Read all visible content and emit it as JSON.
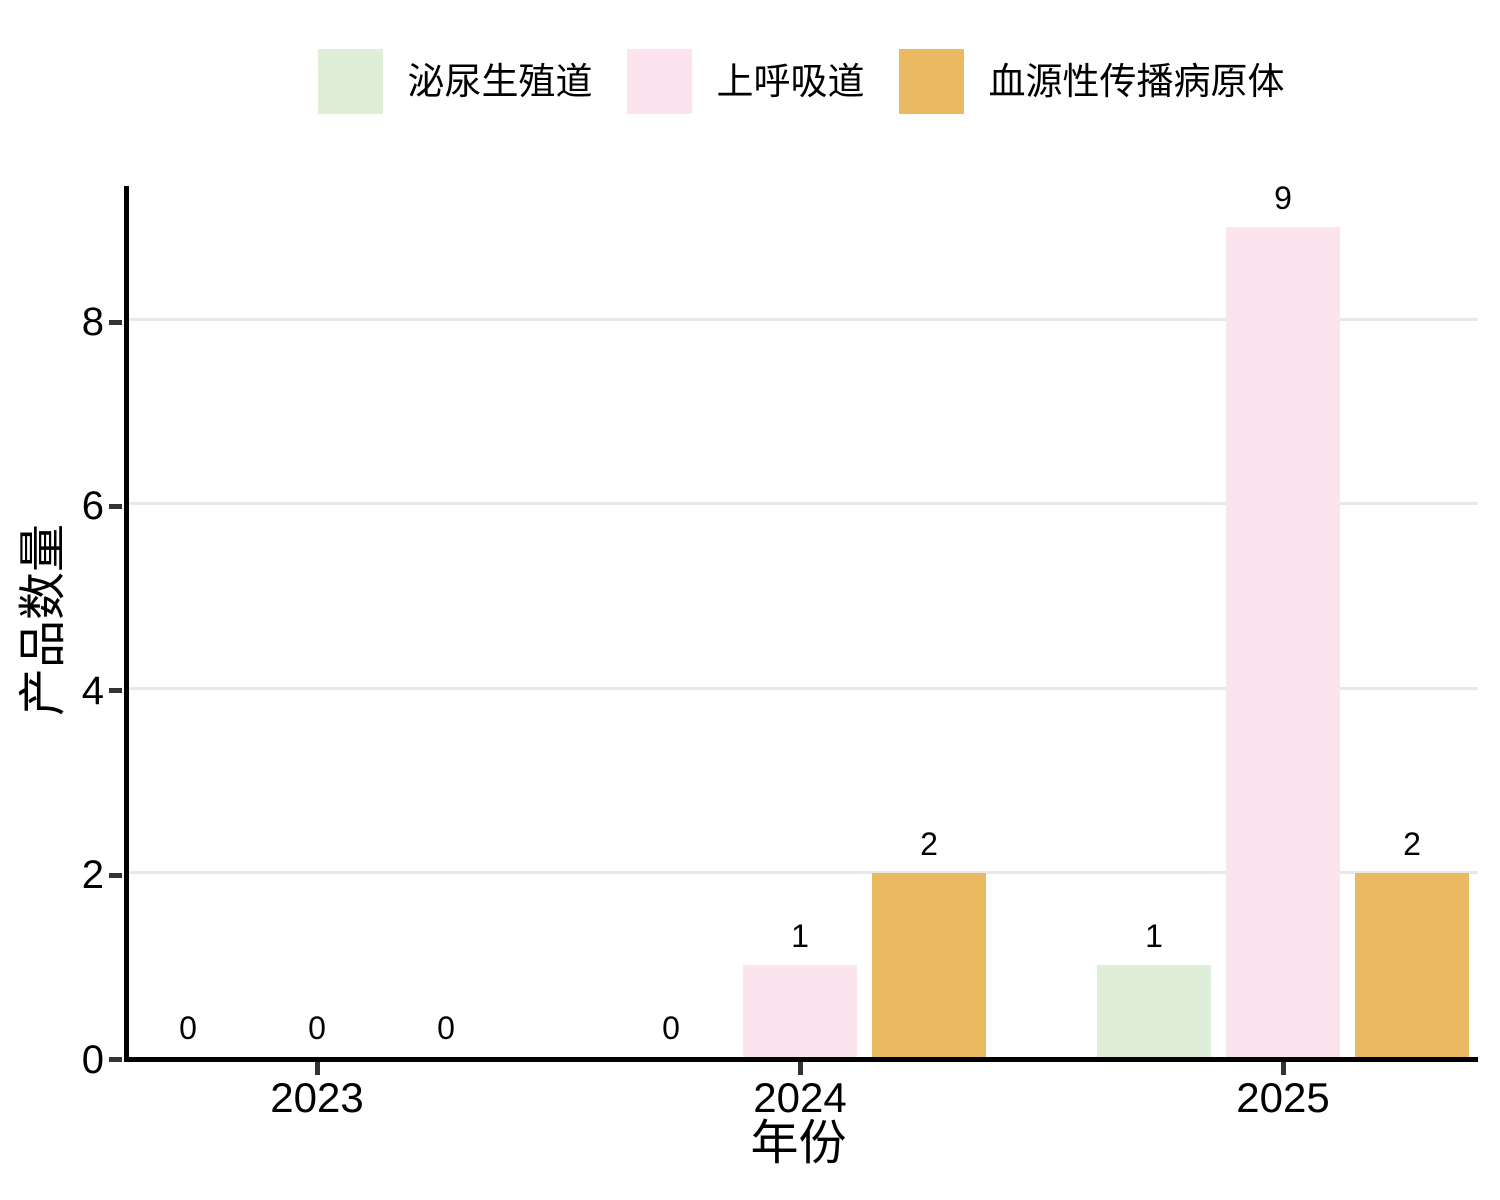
{
  "chart_data": {
    "type": "bar",
    "subtype": "grouped",
    "categories": [
      "2023",
      "2024",
      "2025"
    ],
    "series": [
      {
        "name": "泌尿生殖道",
        "color": "#dfeed8",
        "values": [
          0,
          0,
          1
        ]
      },
      {
        "name": "上呼吸道",
        "color": "#fce4ee",
        "values": [
          0,
          1,
          9
        ]
      },
      {
        "name": "血源性传播病原体",
        "color": "#e9ba62",
        "values": [
          0,
          2,
          2
        ]
      }
    ],
    "bar_value_labels": [
      [
        "0",
        "0",
        "1"
      ],
      [
        "0",
        "1",
        "9"
      ],
      [
        "0",
        "2",
        "2"
      ]
    ],
    "title": "",
    "xlabel": "年份",
    "ylabel": "产品数量",
    "yticks": [
      "0",
      "2",
      "4",
      "6",
      "8"
    ],
    "ylim": [
      0,
      9.45
    ],
    "grid": "horizontal",
    "legend_position": "top"
  },
  "colors": {
    "background": "#ffffff",
    "axis_line": "#000000",
    "tick_mark": "#333333",
    "gridline": "#e8e8e8",
    "text": "#000000"
  }
}
